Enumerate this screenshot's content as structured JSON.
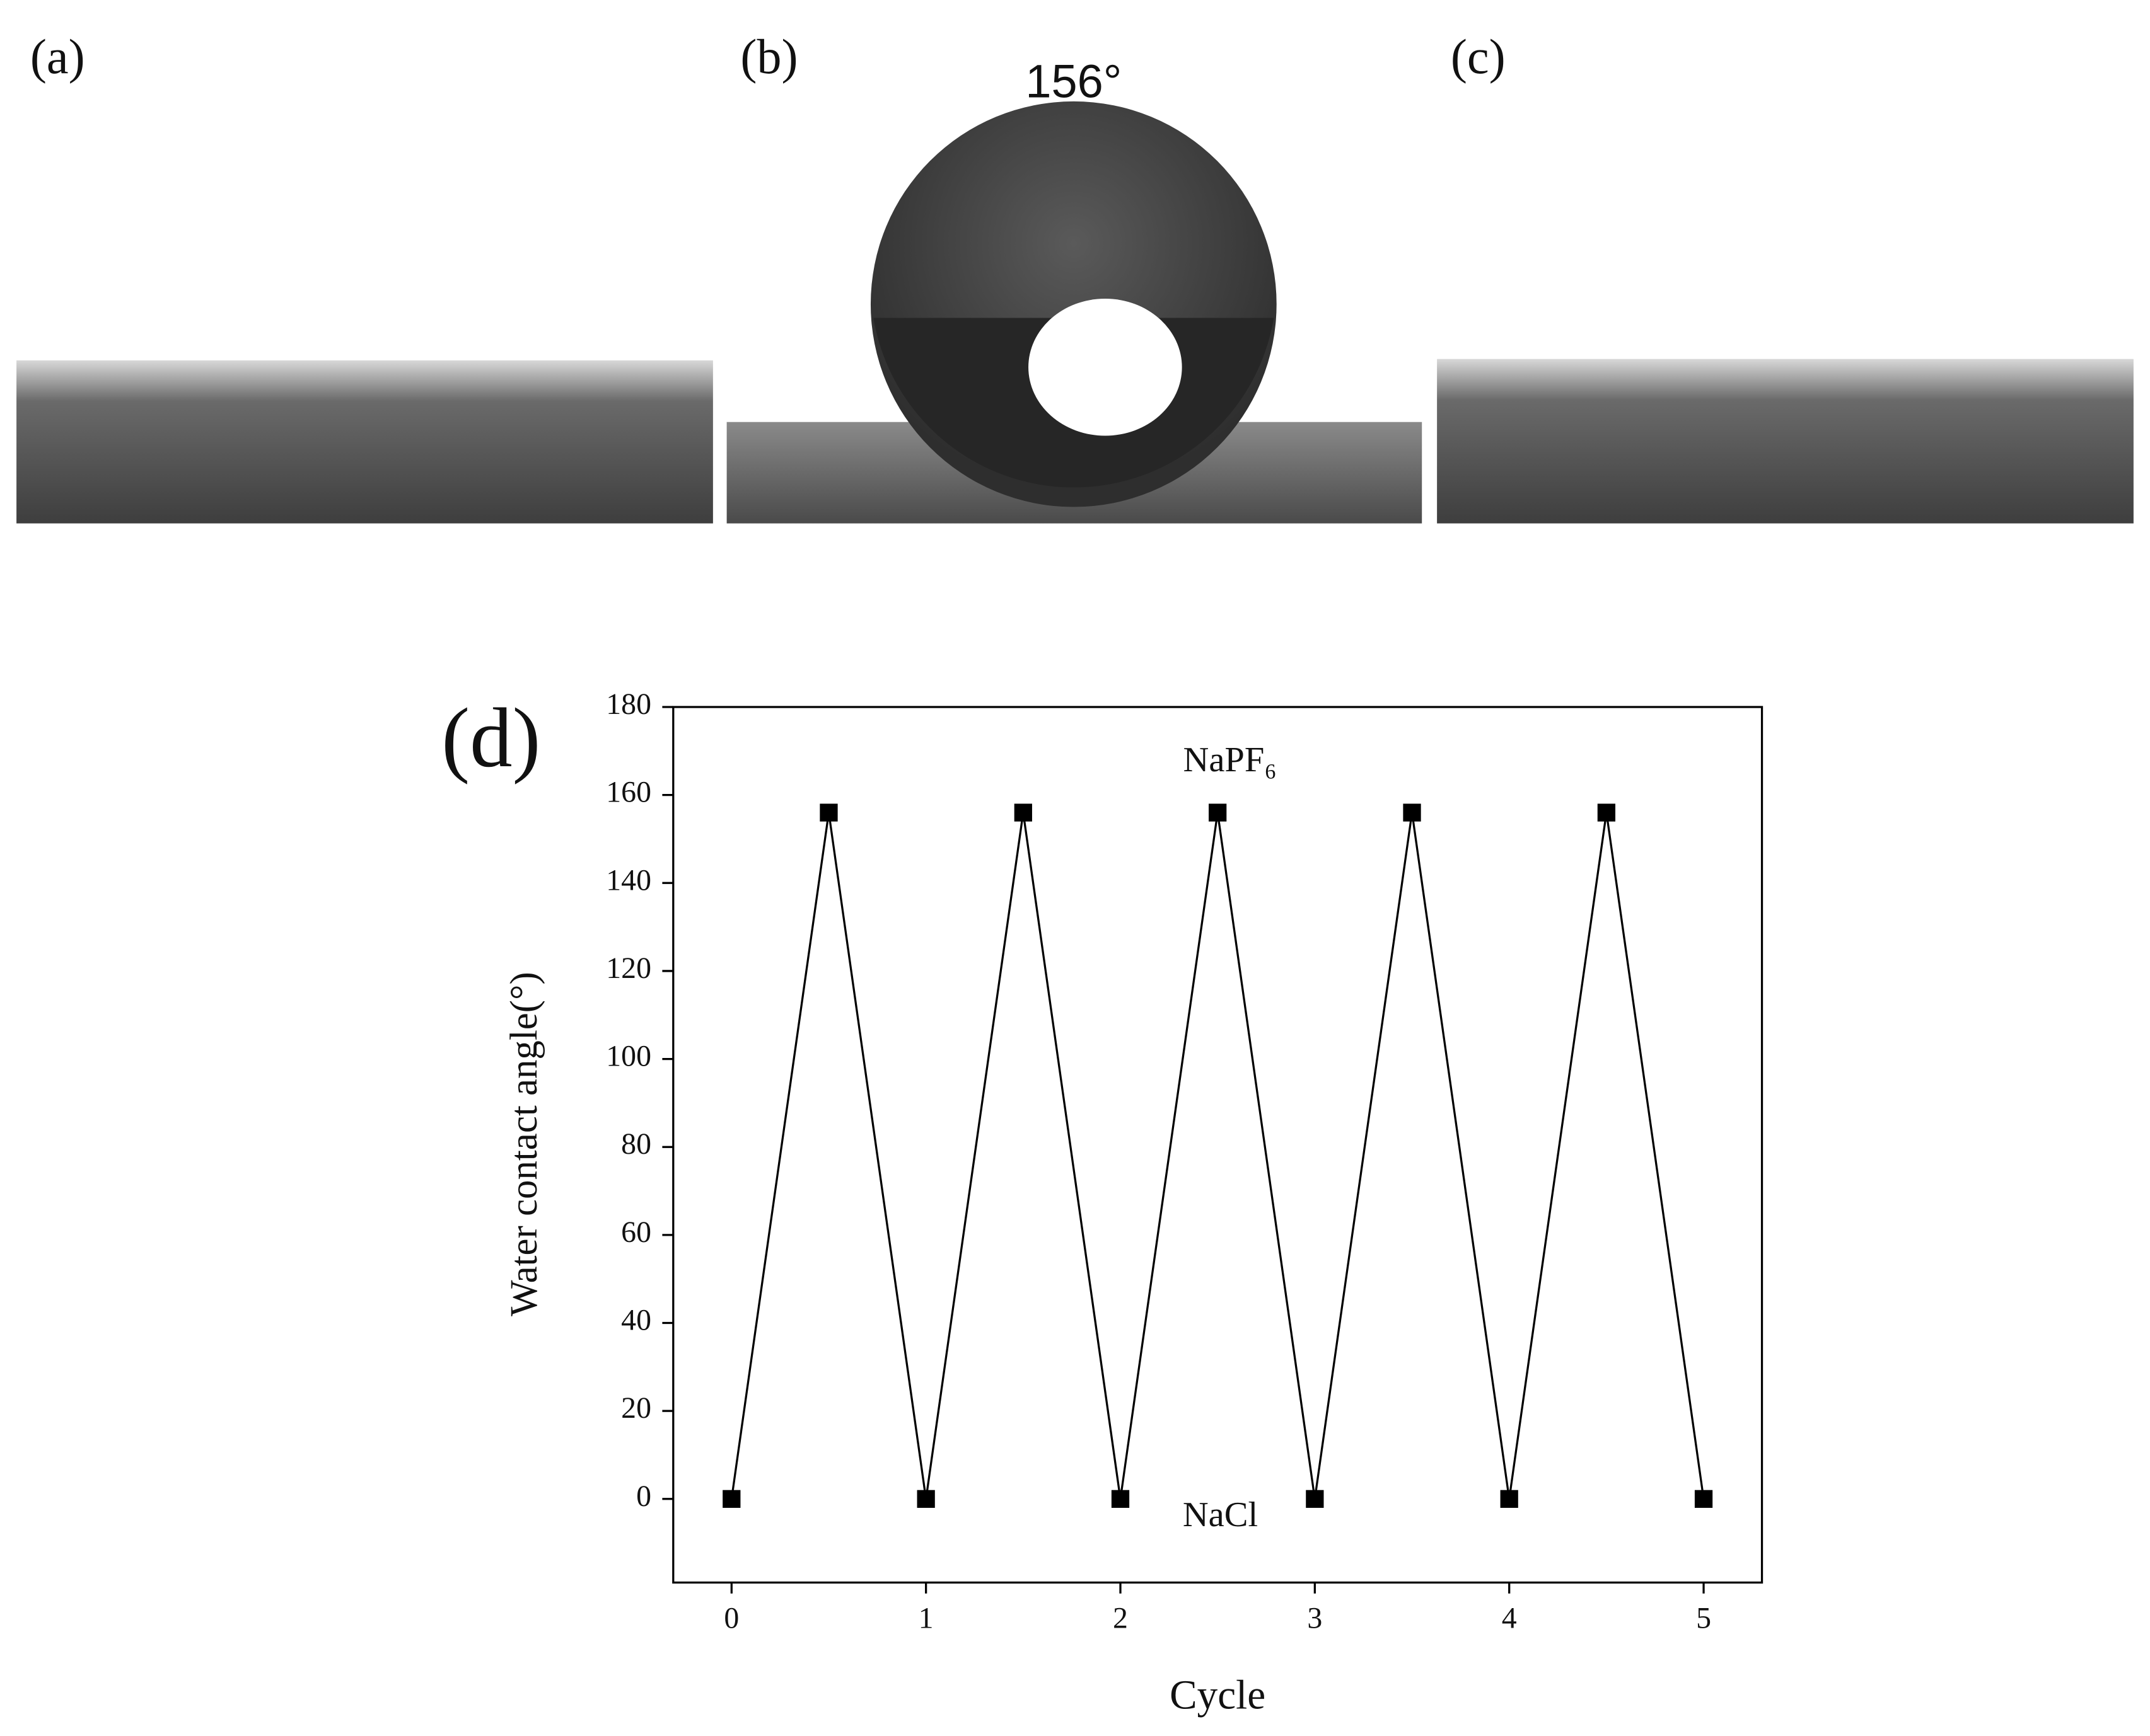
{
  "panel_labels": [
    "(a)",
    "(b)",
    "(c)"
  ],
  "photo_annotation": "156°",
  "chart_data": {
    "type": "line",
    "panel_label": "(d)",
    "x_label": "Cycle",
    "y_label": "Water contact angle(°)",
    "x": [
      0,
      0.5,
      1,
      1.5,
      2,
      2.5,
      3,
      3.5,
      4,
      4.5,
      5
    ],
    "values": [
      0,
      156,
      0,
      156,
      0,
      156,
      0,
      156,
      0,
      156,
      0
    ],
    "color": "#000000",
    "annotations": [
      "NaPF₆",
      "NaCl"
    ],
    "xlim": [
      -0.3,
      5.3
    ],
    "xticks": [
      0,
      1,
      2,
      3,
      4,
      5
    ],
    "ylim": [
      -19,
      180
    ],
    "yticks": [
      0,
      20,
      40,
      60,
      80,
      100,
      120,
      140,
      160,
      180
    ]
  }
}
